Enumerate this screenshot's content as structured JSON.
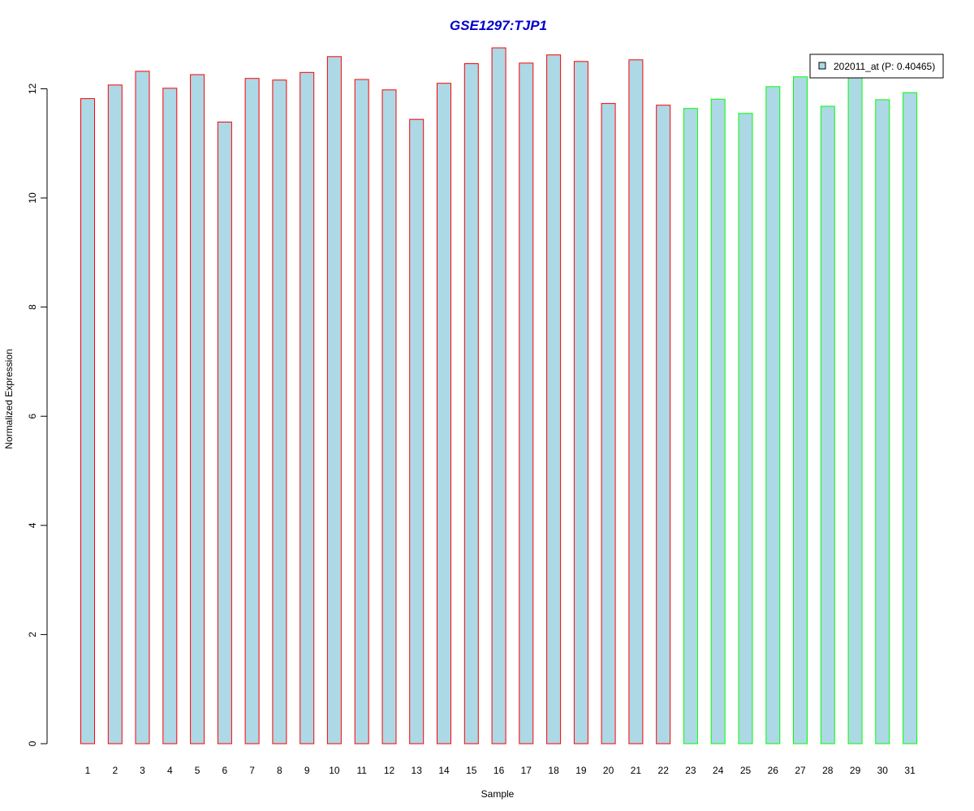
{
  "chart_data": {
    "type": "bar",
    "title": "GSE1297:TJP1",
    "xlabel": "Sample",
    "ylabel": "Normalized Expression",
    "ylim": [
      0,
      12.75
    ],
    "yticks": [
      "0",
      "2",
      "4",
      "6",
      "8",
      "10",
      "12"
    ],
    "categories": [
      "1",
      "2",
      "3",
      "4",
      "5",
      "6",
      "7",
      "8",
      "9",
      "10",
      "11",
      "12",
      "13",
      "14",
      "15",
      "16",
      "17",
      "18",
      "19",
      "20",
      "21",
      "22",
      "23",
      "24",
      "25",
      "26",
      "27",
      "28",
      "29",
      "30",
      "31"
    ],
    "values": [
      11.82,
      12.07,
      12.32,
      12.01,
      12.26,
      11.39,
      12.19,
      12.16,
      12.3,
      12.59,
      12.17,
      11.98,
      11.44,
      12.1,
      12.46,
      12.75,
      12.47,
      12.62,
      12.5,
      11.73,
      12.53,
      11.7,
      11.64,
      11.81,
      11.55,
      12.04,
      12.22,
      11.68,
      12.27,
      11.8,
      11.93
    ],
    "groups": [
      "red",
      "red",
      "red",
      "red",
      "red",
      "red",
      "red",
      "red",
      "red",
      "red",
      "red",
      "red",
      "red",
      "red",
      "red",
      "red",
      "red",
      "red",
      "red",
      "red",
      "red",
      "red",
      "green",
      "green",
      "green",
      "green",
      "green",
      "green",
      "green",
      "green",
      "green"
    ],
    "colors": {
      "fill": "#add8e6",
      "red": "#ff0000",
      "green": "#00ff00",
      "title": "#0000cc"
    },
    "legend": {
      "label": "202011_at (P: 0.40465)",
      "placement": "top-right"
    },
    "grid": false
  }
}
